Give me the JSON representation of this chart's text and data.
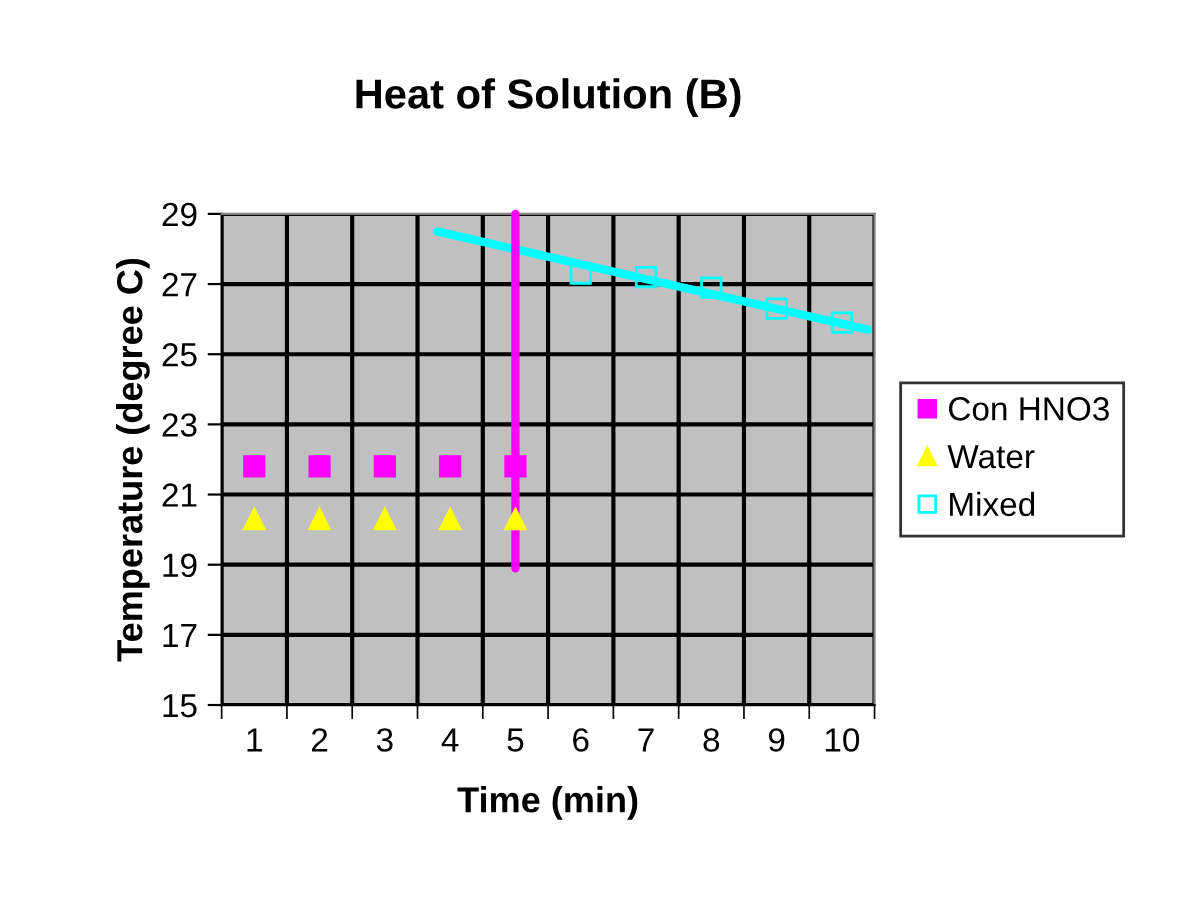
{
  "chart_data": {
    "type": "scatter",
    "title": "Heat of Solution (B)",
    "xlabel": "Time (min)",
    "ylabel": "Temperature (degree C)",
    "xlim": [
      0.5,
      10.5
    ],
    "xticks": [
      {
        "value": 0.5,
        "label": null
      },
      1,
      {
        "value": 1.5,
        "label": null
      },
      2,
      {
        "value": 2.5,
        "label": null
      },
      3,
      {
        "value": 3.5,
        "label": null
      },
      4,
      {
        "value": 4.5,
        "label": null
      },
      5,
      {
        "value": 5.5,
        "label": null
      },
      6,
      {
        "value": 6.5,
        "label": null
      },
      7,
      {
        "value": 7.5,
        "label": null
      },
      8,
      {
        "value": 8.5,
        "label": null
      },
      9,
      {
        "value": 9.5,
        "label": null
      },
      10,
      {
        "value": 10.5,
        "label": null
      }
    ],
    "ylim": [
      15,
      29
    ],
    "yticks": [
      15,
      17,
      19,
      21,
      23,
      25,
      27,
      29
    ],
    "grid": true,
    "legend": "right",
    "series": [
      {
        "name": "Con HNO3",
        "color": "#ff00ff",
        "marker": "square",
        "x": [
          1,
          2,
          3,
          4,
          5
        ],
        "values": [
          21.8,
          21.8,
          21.8,
          21.8,
          21.8
        ]
      },
      {
        "name": "Water",
        "color": "#ffff00",
        "marker": "triangle",
        "x": [
          1,
          2,
          3,
          4,
          5
        ],
        "values": [
          20.3,
          20.3,
          20.3,
          20.3,
          20.3
        ]
      },
      {
        "name": "Mixed",
        "color": "#00ffff",
        "marker": "square",
        "x": [
          6,
          7,
          8,
          9,
          10
        ],
        "values": [
          27.3,
          27.2,
          26.9,
          26.3,
          25.9
        ]
      },
      {
        "type": "line",
        "color": "#00ffff",
        "marker": "none",
        "x": [
          3.8,
          10.4
        ],
        "values": [
          28.5,
          25.7
        ]
      },
      {
        "type": "line",
        "color": "#ff00ff",
        "marker": "none",
        "x": [
          5,
          5
        ],
        "values": [
          18.9,
          29
        ]
      }
    ]
  }
}
